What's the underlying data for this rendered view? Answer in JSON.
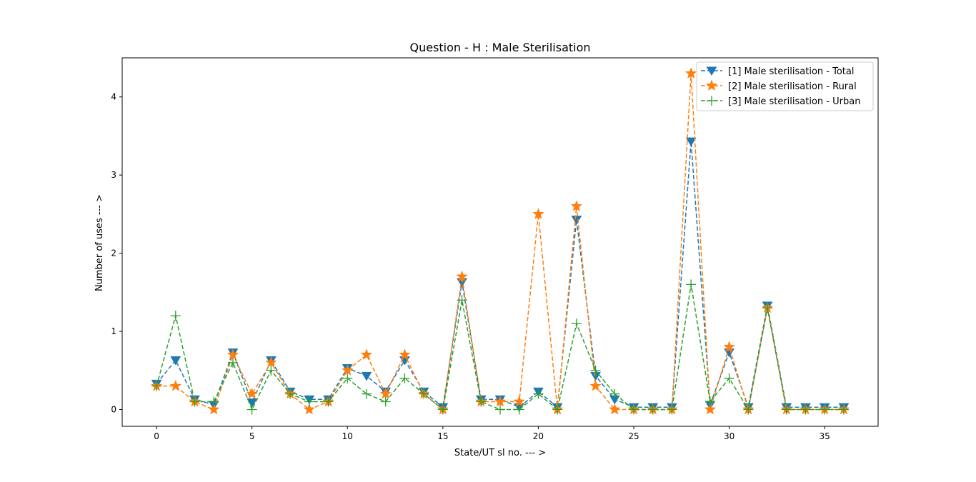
{
  "chart_data": {
    "type": "line",
    "title": "Question - H : Male Sterilisation",
    "xlabel": "State/UT sl no. --- >",
    "ylabel": "Number of uses --- >",
    "xlim": [
      -1.8,
      37.8
    ],
    "ylim": [
      -0.215,
      4.5
    ],
    "xticks": [
      0,
      5,
      10,
      15,
      20,
      25,
      30,
      35
    ],
    "yticks": [
      0,
      1,
      2,
      3,
      4
    ],
    "legend_position": "top-right",
    "x": [
      0,
      1,
      2,
      3,
      4,
      5,
      6,
      7,
      8,
      9,
      10,
      11,
      12,
      13,
      14,
      15,
      16,
      17,
      18,
      19,
      20,
      21,
      22,
      23,
      24,
      25,
      26,
      27,
      28,
      29,
      30,
      31,
      32,
      33,
      34,
      35,
      36
    ],
    "series": [
      {
        "name": "[1] Male sterilisation - Total",
        "color": "#1f77b4",
        "marker": "triangle-down",
        "values": [
          0.33,
          0.63,
          0.13,
          0.06,
          0.73,
          0.09,
          0.63,
          0.23,
          0.13,
          0.13,
          0.53,
          0.43,
          0.23,
          0.63,
          0.23,
          0.03,
          1.63,
          0.13,
          0.13,
          0.03,
          0.23,
          0.03,
          2.43,
          0.43,
          0.13,
          0.03,
          0.03,
          0.03,
          3.43,
          0.06,
          0.73,
          0.03,
          1.33,
          0.03,
          0.03,
          0.03,
          0.03
        ]
      },
      {
        "name": "[2] Male sterilisation - Rural",
        "color": "#ff7f0e",
        "marker": "star",
        "values": [
          0.3,
          0.3,
          0.1,
          0.0,
          0.7,
          0.2,
          0.6,
          0.2,
          0.0,
          0.1,
          0.5,
          0.7,
          0.2,
          0.7,
          0.2,
          0.0,
          1.7,
          0.1,
          0.1,
          0.1,
          2.5,
          0.0,
          2.6,
          0.3,
          0.0,
          0.0,
          0.0,
          0.0,
          4.3,
          0.0,
          0.8,
          0.0,
          1.3,
          0.0,
          0.0,
          0.0,
          0.0
        ]
      },
      {
        "name": "[3] Male sterilisation - Urban",
        "color": "#2ca02c",
        "marker": "plus",
        "values": [
          0.3,
          1.2,
          0.1,
          0.1,
          0.6,
          0.0,
          0.5,
          0.2,
          0.1,
          0.1,
          0.4,
          0.2,
          0.1,
          0.4,
          0.2,
          0.0,
          1.4,
          0.1,
          0.0,
          0.0,
          0.2,
          0.0,
          1.1,
          0.5,
          0.2,
          0.0,
          0.0,
          0.0,
          1.6,
          0.1,
          0.4,
          0.0,
          1.3,
          0.0,
          0.0,
          0.0,
          0.0
        ]
      }
    ]
  }
}
